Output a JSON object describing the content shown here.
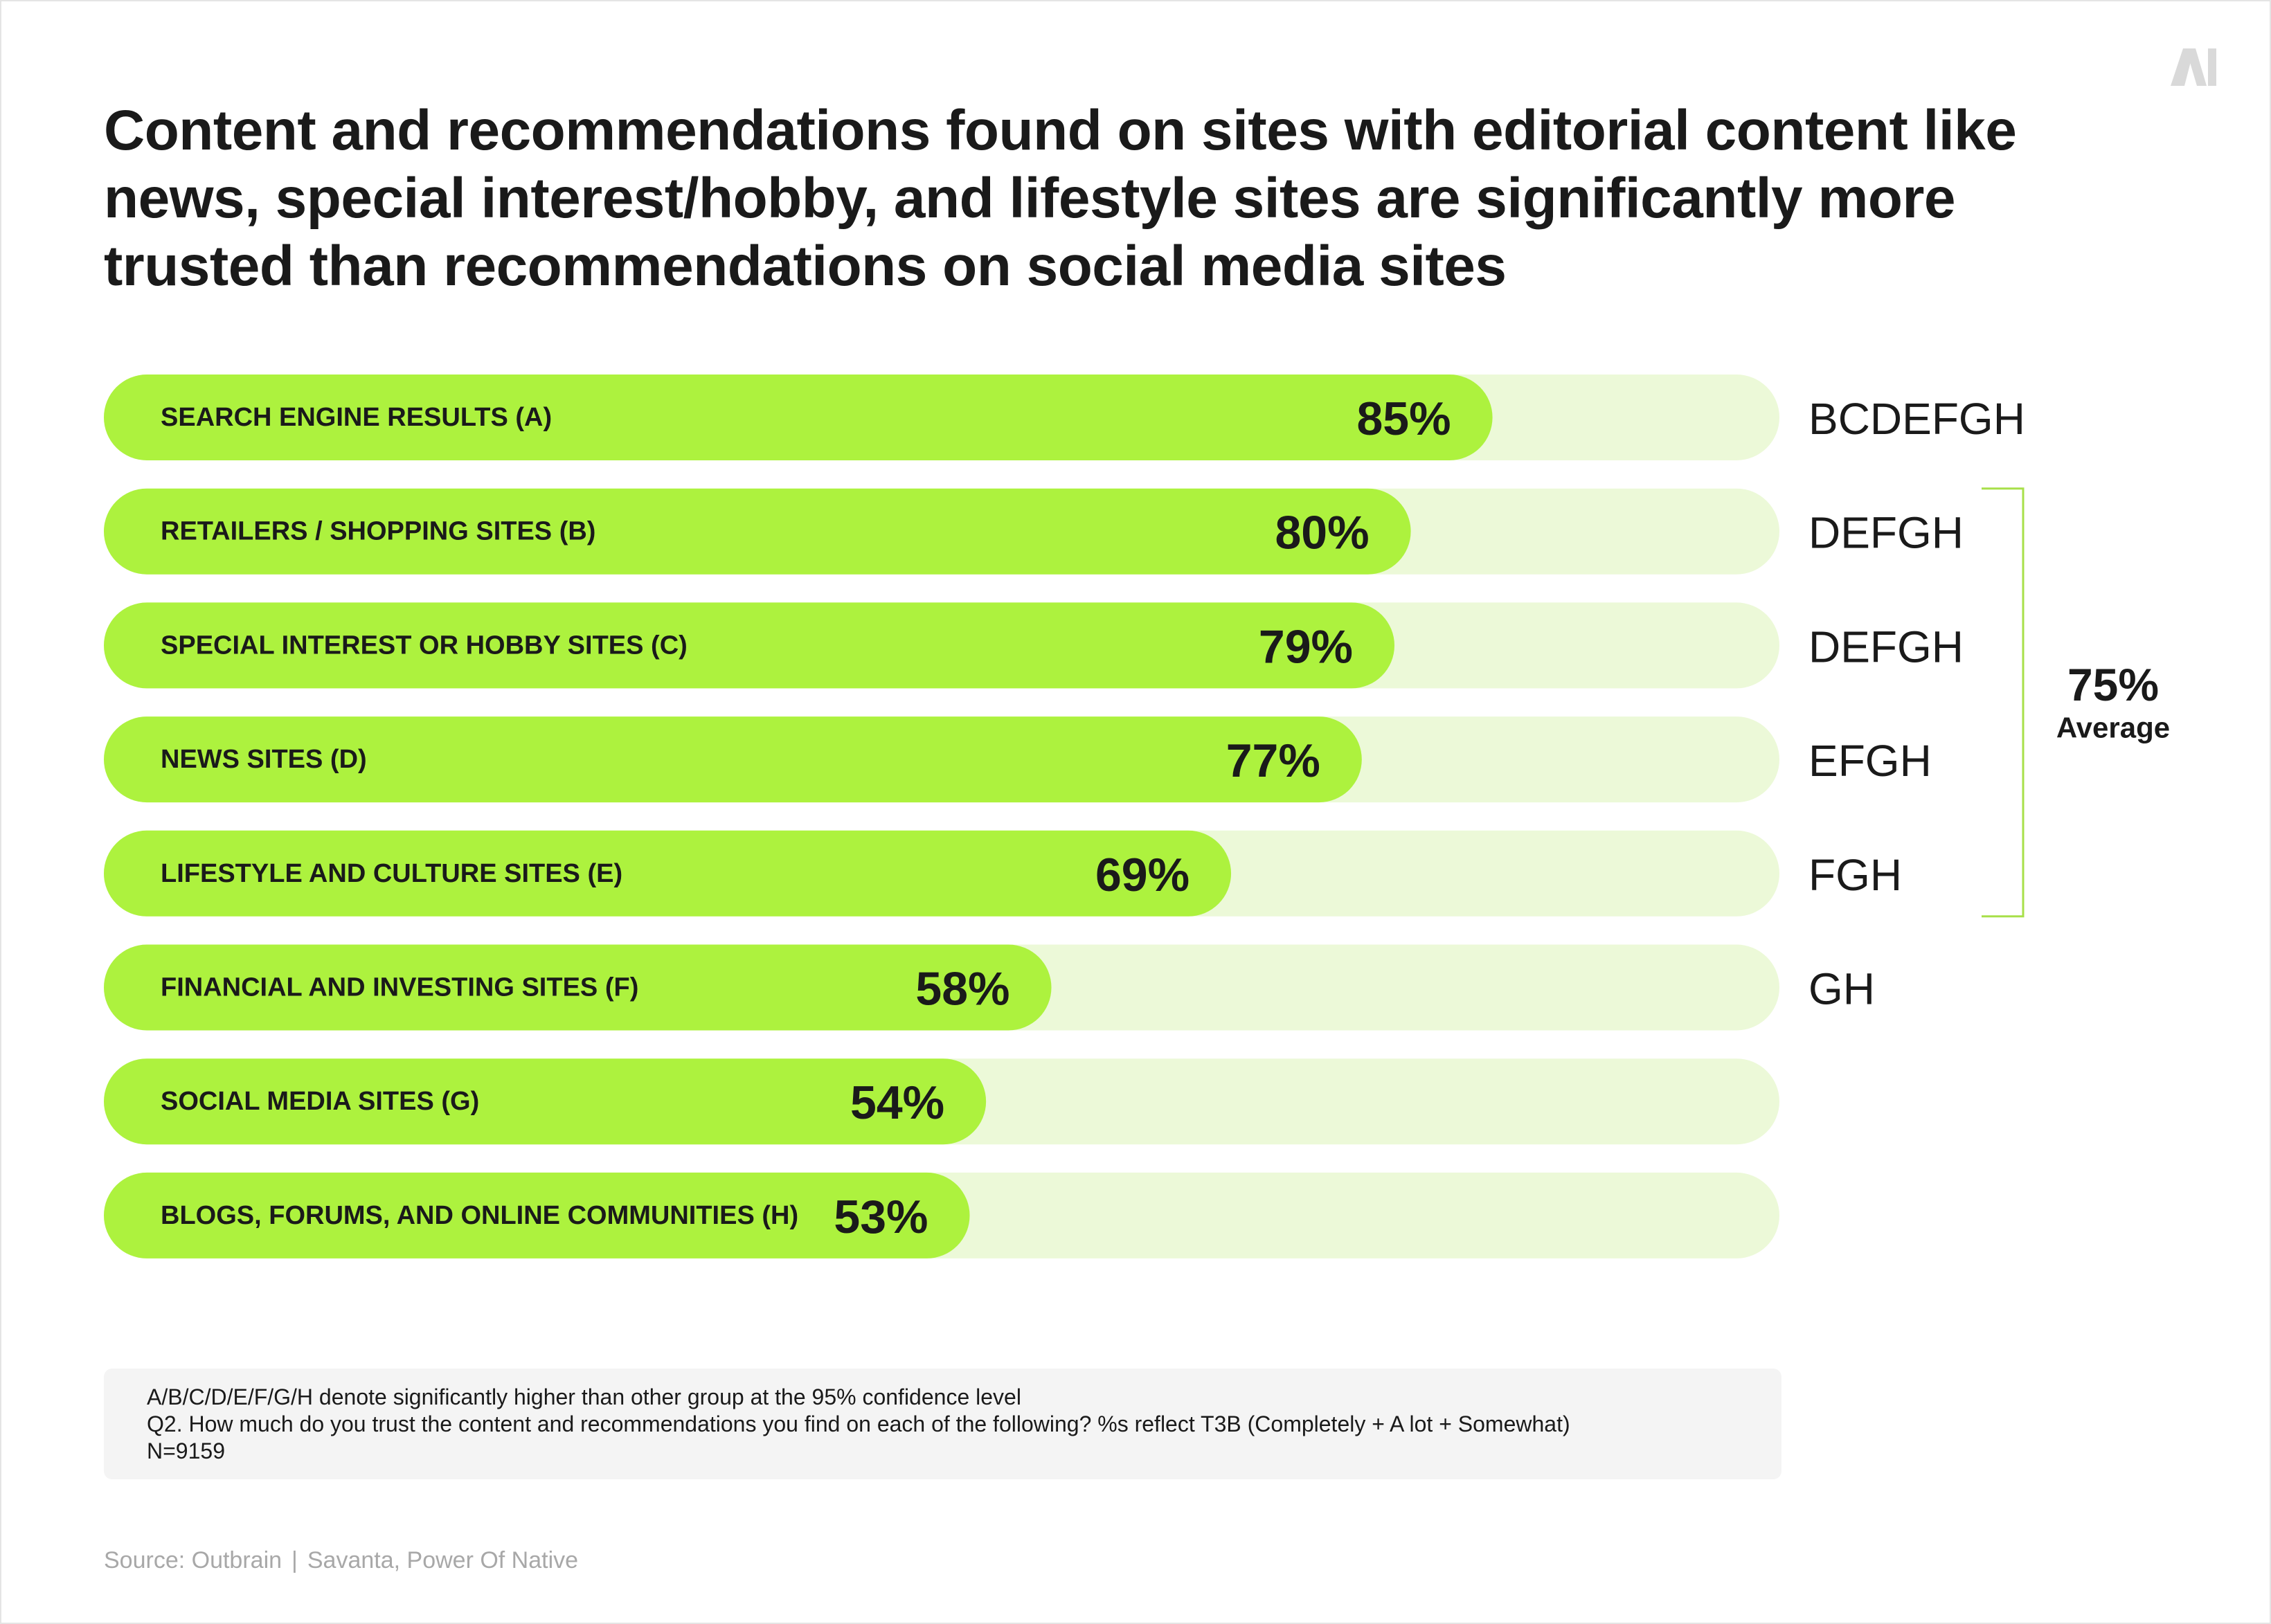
{
  "title": "Content and recommendations found on sites with editorial content like news, special interest/hobby, and lifestyle sites are significantly more trusted than recommendations on social media sites",
  "colors": {
    "bar": "#adf23e",
    "track": "#ecf9d8",
    "bracket": "#a8e04a",
    "text": "#1a1a1a"
  },
  "logo": {
    "icon": "ai-logo-icon",
    "text": "AI"
  },
  "chart_data": {
    "type": "bar",
    "orientation": "horizontal",
    "xlim": [
      0,
      100
    ],
    "unit": "%",
    "categories": [
      "SEARCH ENGINE RESULTS (A)",
      "RETAILERS / SHOPPING SITES (B)",
      "SPECIAL INTEREST OR HOBBY SITES (C)",
      "NEWS SITES (D)",
      "LIFESTYLE AND CULTURE SITES (E)",
      "FINANCIAL AND INVESTING SITES (F)",
      "SOCIAL MEDIA SITES (G)",
      "BLOGS, FORUMS, AND ONLINE COMMUNITIES (H)"
    ],
    "values": [
      85,
      80,
      79,
      77,
      69,
      58,
      54,
      53
    ],
    "value_labels": [
      "85%",
      "80%",
      "79%",
      "77%",
      "69%",
      "58%",
      "54%",
      "53%"
    ],
    "significance": [
      "BCDEFGH",
      "DEFGH",
      "DEFGH",
      "EFGH",
      "FGH",
      "GH",
      "",
      ""
    ],
    "average": {
      "value": 75,
      "value_label": "75%",
      "label": "Average",
      "bracket_rows": [
        1,
        4
      ]
    }
  },
  "notes": [
    "A/B/C/D/E/F/G/H denote significantly higher than other group at the 95% confidence level",
    "Q2. How much do you trust the content and recommendations you find on each of the following? %s reflect T3B (Completely + A lot + Somewhat)",
    "N=9159"
  ],
  "source": {
    "left": "Source: Outbrain",
    "separator": "|",
    "right": "Savanta, Power Of Native"
  }
}
